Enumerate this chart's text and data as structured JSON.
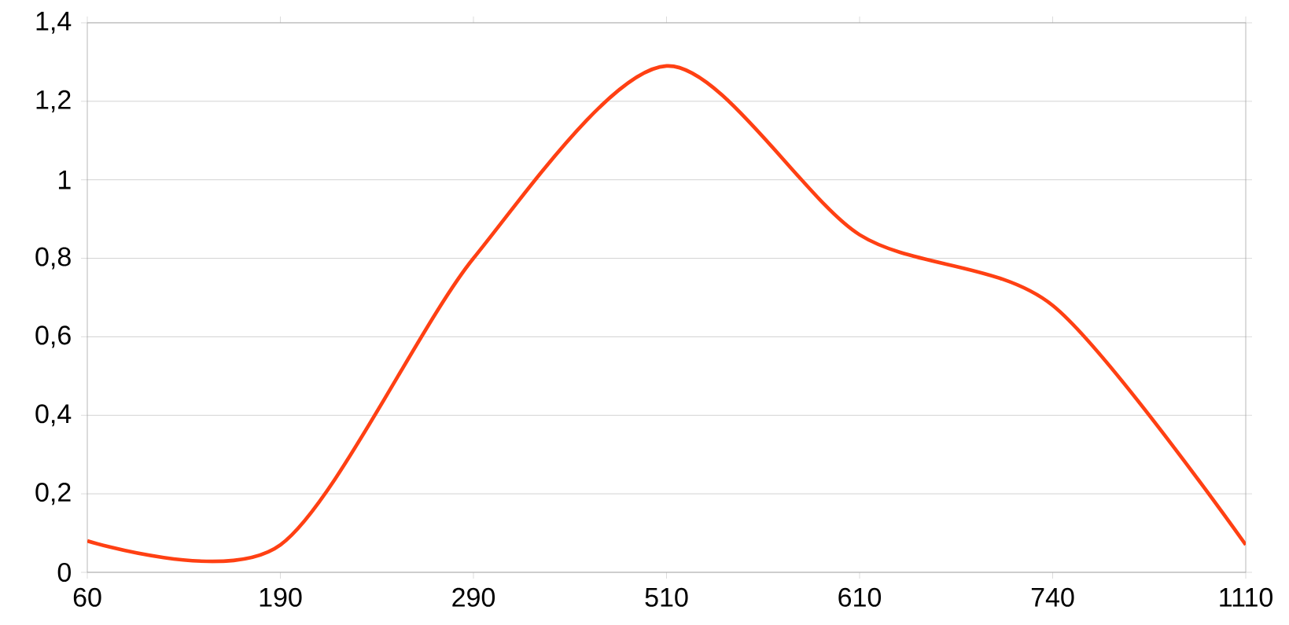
{
  "chart_data": {
    "type": "line",
    "categories": [
      "60",
      "190",
      "290",
      "510",
      "610",
      "740",
      "1110"
    ],
    "series": [
      {
        "color": "#ff4013",
        "values": [
          0.08,
          0.07,
          0.8,
          1.29,
          0.86,
          0.68,
          0.07
        ]
      }
    ],
    "ylim": [
      0,
      1.4
    ],
    "yticks": [
      0,
      {
        "value": 0.2,
        "label": "0,2"
      },
      {
        "value": 0.4,
        "label": "0,4"
      },
      {
        "value": 0.6,
        "label": "0,6"
      },
      {
        "value": 0.8,
        "label": "0,8"
      },
      1,
      {
        "value": 1.2,
        "label": "1,2"
      },
      {
        "value": 1.4,
        "label": "1,4"
      }
    ],
    "grid": "y",
    "marker": "none"
  }
}
